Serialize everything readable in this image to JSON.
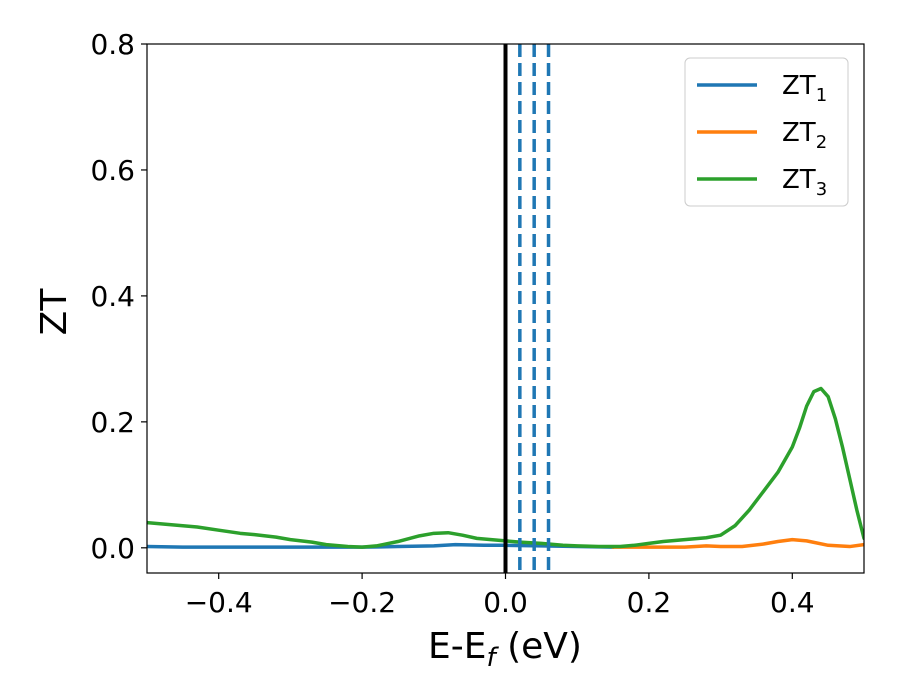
{
  "chart_data": {
    "type": "line",
    "xlabel": "E-E",
    "xlabel_sub": "f",
    "xlabel_unit": " (eV)",
    "ylabel": "ZT",
    "xlim": [
      -0.5,
      0.5
    ],
    "ylim": [
      -0.04,
      0.8
    ],
    "xticks": [
      -0.4,
      -0.2,
      0.0,
      0.2,
      0.4
    ],
    "xtick_labels": [
      "−0.4",
      "−0.2",
      "0.0",
      "0.2",
      "0.4"
    ],
    "yticks": [
      0.0,
      0.2,
      0.4,
      0.6,
      0.8
    ],
    "ytick_labels": [
      "0.0",
      "0.2",
      "0.4",
      "0.6",
      "0.8"
    ],
    "grid": false,
    "legend_position": "top-right",
    "vertical_lines": [
      {
        "x": 0.0,
        "style": "solid",
        "color": "#000000"
      },
      {
        "x": 0.02,
        "style": "dashed",
        "color": "#1f77b4"
      },
      {
        "x": 0.04,
        "style": "dashed",
        "color": "#1f77b4"
      },
      {
        "x": 0.06,
        "style": "dashed",
        "color": "#1f77b4"
      }
    ],
    "series": [
      {
        "name": "ZT",
        "name_sub": "1",
        "color": "#1f77b4",
        "x": [
          -0.5,
          -0.45,
          -0.4,
          -0.35,
          -0.3,
          -0.25,
          -0.2,
          -0.15,
          -0.1,
          -0.07,
          -0.03,
          0.0,
          0.05,
          0.1,
          0.15
        ],
        "y": [
          0.002,
          0.001,
          0.001,
          0.001,
          0.001,
          0.001,
          0.001,
          0.002,
          0.003,
          0.005,
          0.004,
          0.004,
          0.003,
          0.002,
          0.001
        ]
      },
      {
        "name": "ZT",
        "name_sub": "2",
        "color": "#ff7f0e",
        "x": [
          0.15,
          0.2,
          0.25,
          0.28,
          0.3,
          0.33,
          0.36,
          0.38,
          0.4,
          0.42,
          0.45,
          0.48,
          0.5
        ],
        "y": [
          0.001,
          0.001,
          0.001,
          0.003,
          0.002,
          0.002,
          0.006,
          0.01,
          0.013,
          0.011,
          0.004,
          0.002,
          0.005
        ]
      },
      {
        "name": "ZT",
        "name_sub": "3",
        "color": "#2ca02c",
        "x": [
          -0.5,
          -0.45,
          -0.43,
          -0.4,
          -0.37,
          -0.35,
          -0.32,
          -0.3,
          -0.27,
          -0.25,
          -0.22,
          -0.2,
          -0.18,
          -0.15,
          -0.12,
          -0.1,
          -0.08,
          -0.06,
          -0.04,
          -0.02,
          0.0,
          0.02,
          0.05,
          0.08,
          0.1,
          0.13,
          0.16,
          0.18,
          0.2,
          0.22,
          0.25,
          0.28,
          0.3,
          0.32,
          0.34,
          0.36,
          0.38,
          0.4,
          0.41,
          0.42,
          0.43,
          0.44,
          0.45,
          0.46,
          0.47,
          0.48,
          0.49,
          0.5
        ],
        "y": [
          0.04,
          0.035,
          0.033,
          0.028,
          0.023,
          0.021,
          0.017,
          0.013,
          0.009,
          0.005,
          0.002,
          0.001,
          0.003,
          0.01,
          0.019,
          0.023,
          0.024,
          0.02,
          0.015,
          0.013,
          0.011,
          0.009,
          0.007,
          0.004,
          0.003,
          0.002,
          0.002,
          0.004,
          0.007,
          0.01,
          0.013,
          0.016,
          0.02,
          0.035,
          0.06,
          0.09,
          0.12,
          0.16,
          0.19,
          0.225,
          0.248,
          0.253,
          0.24,
          0.205,
          0.16,
          0.11,
          0.06,
          0.015
        ]
      }
    ]
  }
}
